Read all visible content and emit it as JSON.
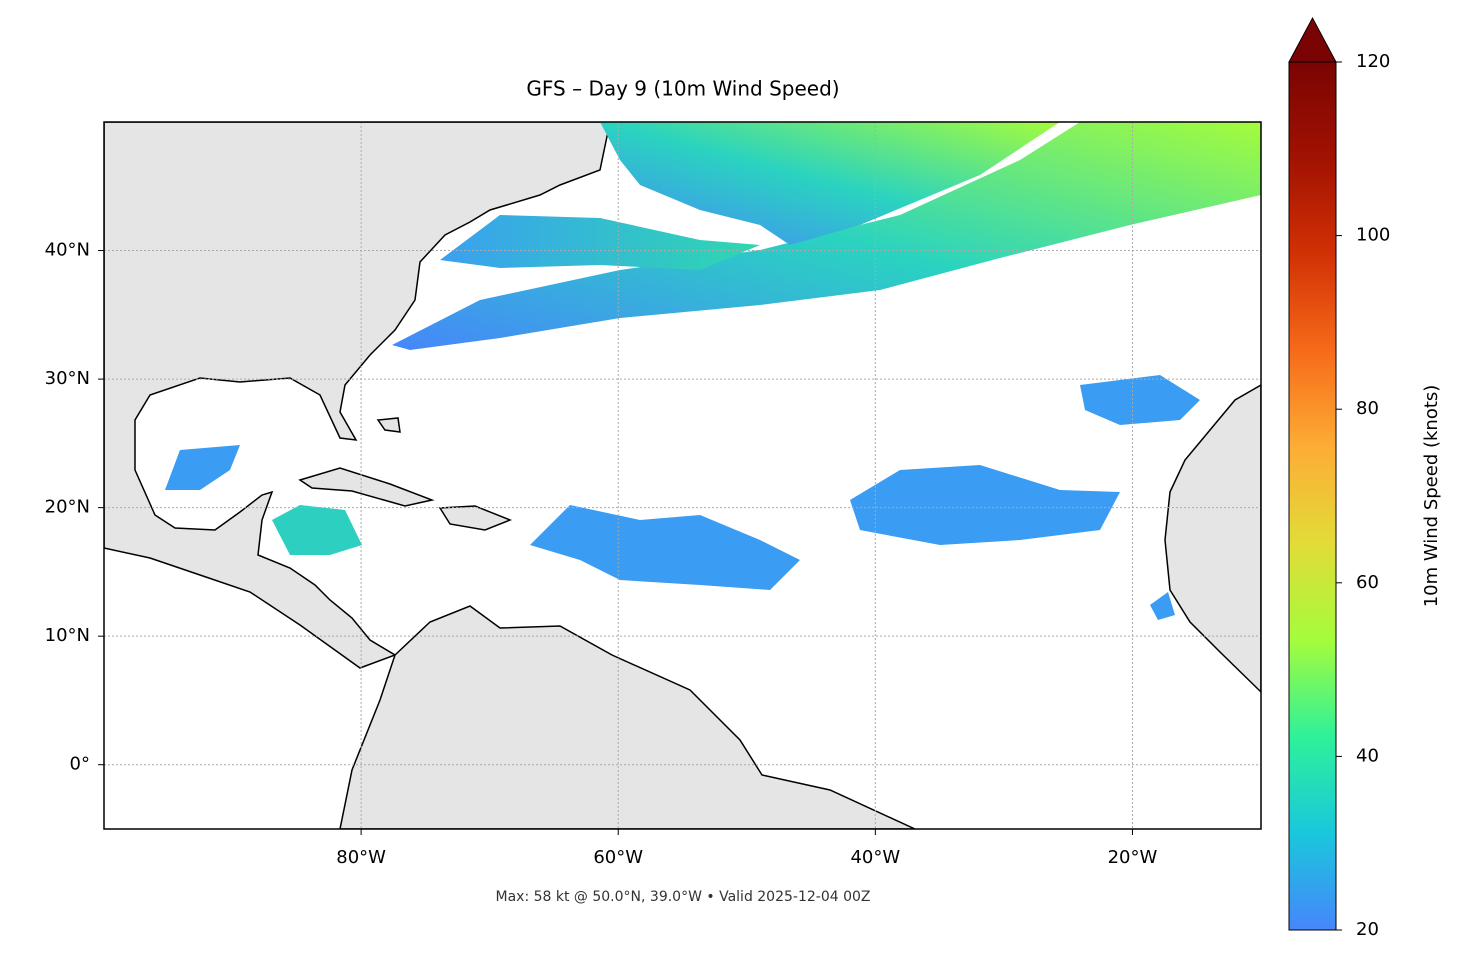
{
  "chart_data": {
    "type": "map",
    "title": "GFS – Day 9 (10m Wind Speed)",
    "caption": "Max: 58 kt @ 50.0°N, 39.0°W • Valid 2025-12-04 00Z",
    "xlim": [
      -100,
      -10
    ],
    "ylim": [
      -5,
      50
    ],
    "xticks": [
      {
        "value": -80,
        "label": "80°W"
      },
      {
        "value": -60,
        "label": "60°W"
      },
      {
        "value": -40,
        "label": "40°W"
      },
      {
        "value": -20,
        "label": "20°W"
      }
    ],
    "yticks": [
      {
        "value": 0,
        "label": "0°"
      },
      {
        "value": 10,
        "label": "10°N"
      },
      {
        "value": 20,
        "label": "20°N"
      },
      {
        "value": 30,
        "label": "30°N"
      },
      {
        "value": 40,
        "label": "40°N"
      }
    ],
    "grid": true,
    "colorbar": {
      "label": "10m Wind Speed (knots)",
      "lim": [
        20,
        120
      ],
      "ticks": [
        20,
        40,
        60,
        80,
        100,
        120
      ],
      "extend": "max",
      "colors": [
        "#4686fb",
        "#1ac7dc",
        "#2ef19a",
        "#a4fc3c",
        "#e2dc38",
        "#fdad35",
        "#f66b19",
        "#d23105",
        "#a11201",
        "#7a0403"
      ]
    }
  }
}
